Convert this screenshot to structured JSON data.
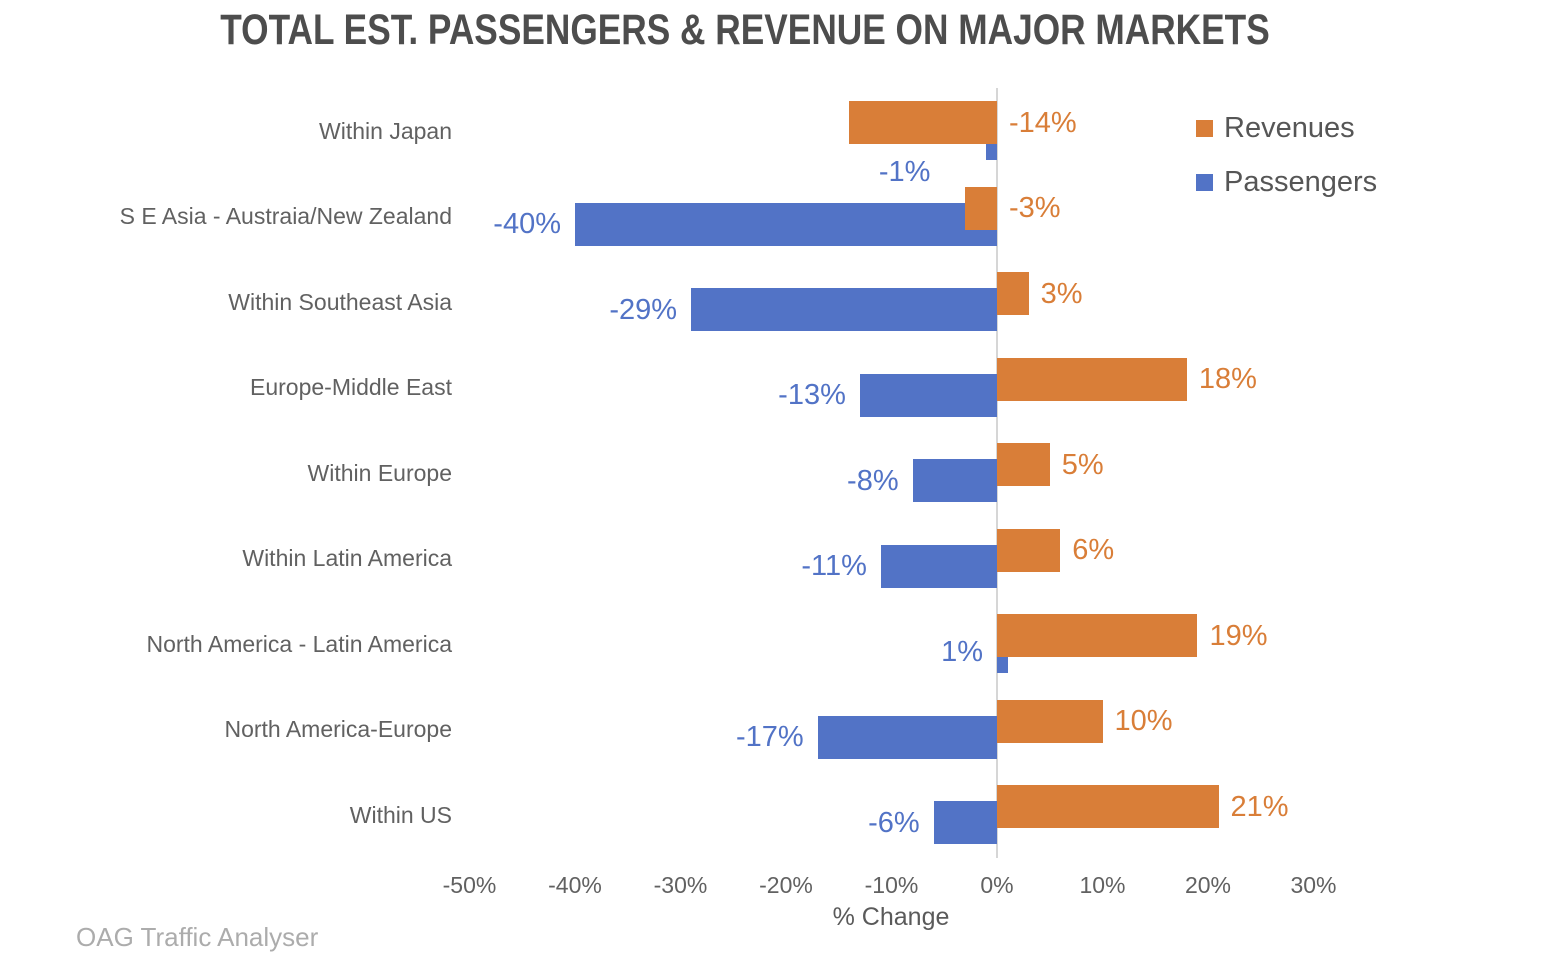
{
  "title": "TOTAL EST. PASSENGERS & REVENUE ON MAJOR MARKETS",
  "source_caption": "OAG Traffic Analyser",
  "chart_data": {
    "type": "bar",
    "orientation": "horizontal",
    "title": "TOTAL EST. PASSENGERS & REVENUE ON MAJOR MARKETS",
    "xlabel": "% Change",
    "xlim": [
      -50,
      30
    ],
    "x_ticks": [
      "-50%",
      "-40%",
      "-30%",
      "-20%",
      "-10%",
      "0%",
      "10%",
      "20%",
      "30%"
    ],
    "x_tick_values": [
      -50,
      -40,
      -30,
      -20,
      -10,
      0,
      10,
      20,
      30
    ],
    "grid": false,
    "legend_position": "top-right",
    "categories": [
      "Within Japan",
      "S E Asia - Austraia/New Zealand",
      "Within Southeast Asia",
      "Europe-Middle East",
      "Within Europe",
      "Within Latin America",
      "North America - Latin America",
      "North America-Europe",
      "Within US"
    ],
    "series": [
      {
        "name": "Revenues",
        "color": "#D97E38",
        "values": [
          -14,
          -3,
          3,
          18,
          5,
          6,
          19,
          10,
          21
        ],
        "labels": [
          "-14%",
          "-3%",
          "3%",
          "18%",
          "5%",
          "6%",
          "19%",
          "10%",
          "21%"
        ]
      },
      {
        "name": "Passengers",
        "color": "#5273C6",
        "values": [
          -1,
          -40,
          -29,
          -13,
          -8,
          -11,
          1,
          -17,
          -6
        ],
        "labels": [
          "-1%",
          "-40%",
          "-29%",
          "-13%",
          "-8%",
          "-11%",
          "1%",
          "-17%",
          "-6%"
        ],
        "label_dx": [
          -42,
          0,
          0,
          0,
          0,
          0,
          0,
          0,
          0
        ],
        "label_dy": [
          33,
          0,
          0,
          0,
          0,
          0,
          0,
          0,
          0
        ]
      }
    ]
  }
}
